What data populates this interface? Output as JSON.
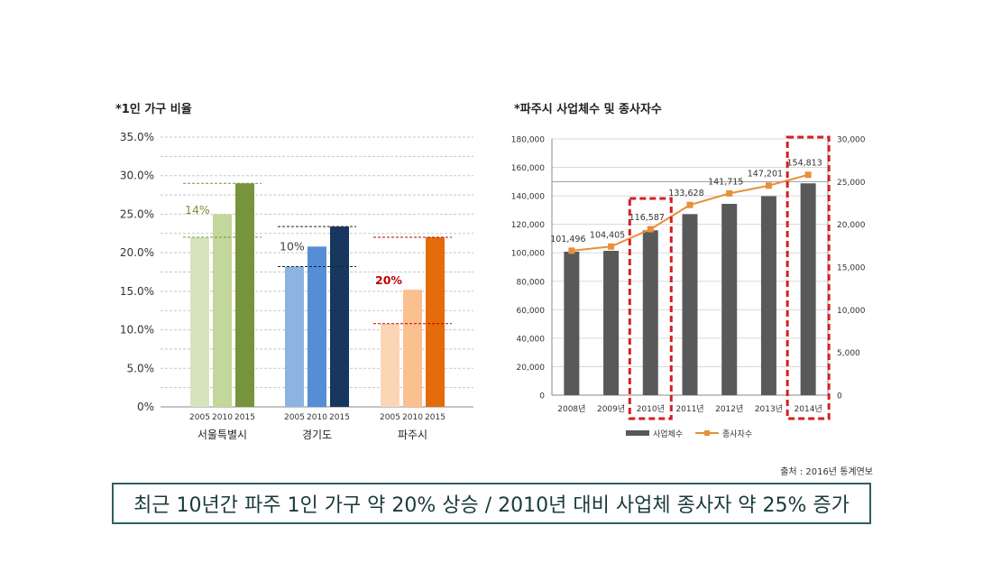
{
  "chart_data": [
    {
      "type": "bar",
      "title": "*1인 가구 비율",
      "groups": [
        "서울특별시",
        "경기도",
        "파주시"
      ],
      "years": [
        "2005",
        "2010",
        "2015"
      ],
      "values": [
        [
          22.0,
          25.0,
          29.0
        ],
        [
          18.2,
          20.8,
          23.4
        ],
        [
          10.8,
          15.2,
          22.0
        ]
      ],
      "colors": [
        [
          "#d6e4bd",
          "#c3d69b",
          "#77933c"
        ],
        [
          "#8db3e2",
          "#558ed5",
          "#17375e"
        ],
        [
          "#fcd5b5",
          "#fac090",
          "#e46c0a"
        ]
      ],
      "annotations": [
        {
          "text": "14%",
          "color": "#77933c",
          "group": 0
        },
        {
          "text": "10%",
          "color": "#444444",
          "group": 1
        },
        {
          "text": "20%",
          "color": "#c00000",
          "group": 2
        }
      ],
      "yticks": [
        "35.0%",
        "30.0%",
        "25.0%",
        "20.0%",
        "15.0%",
        "10.0%",
        "5.0%",
        "0%"
      ],
      "ylim": [
        0,
        35
      ],
      "grid": true
    },
    {
      "type": "bar+line",
      "title": "*파주시 사업체수 및 종사자수",
      "categories": [
        "2008년",
        "2009년",
        "2010년",
        "2011년",
        "2012년",
        "2013년",
        "2014년"
      ],
      "bar_series": {
        "name": "사업체수",
        "color": "#595959",
        "values": [
          16800,
          16900,
          19300,
          21200,
          22400,
          23300,
          24800
        ]
      },
      "line_series": {
        "name": "종사자수",
        "color": "#e88f3a",
        "values": [
          101496,
          104405,
          116587,
          133628,
          141715,
          147201,
          154813
        ]
      },
      "line_labels": [
        "101,496",
        "104,405",
        "116,587",
        "133,628",
        "141,715",
        "147,201",
        "154,813"
      ],
      "left_ticks": [
        "180,000",
        "160,000",
        "140,000",
        "120,000",
        "100,000",
        "80,000",
        "60,000",
        "40,000",
        "20,000",
        "0"
      ],
      "right_ticks": [
        "30,000",
        "25,000",
        "20,000",
        "15,000",
        "10,000",
        "5,000",
        "0"
      ],
      "ylim_left": [
        0,
        180000
      ],
      "ylim_right": [
        0,
        30000
      ],
      "highlighted": [
        "2010년",
        "2014년"
      ],
      "highlight_color": "#d42020",
      "legend_position": "bottom"
    }
  ],
  "source": "출처 : 2016년 통계연보",
  "summary": "최근 10년간 파주 1인 가구 약 20% 상승 / 2010년 대비 사업체 종사자 약 25% 증가"
}
